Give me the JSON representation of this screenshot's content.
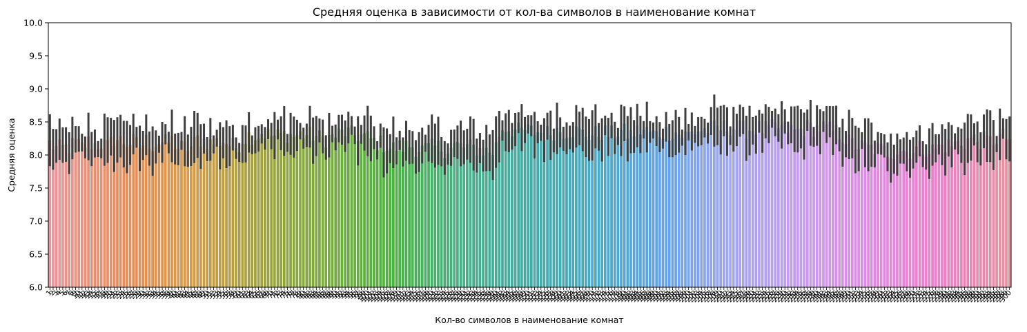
{
  "chart_data": {
    "type": "bar",
    "title": "Средняя оценка в зависимости от кол-ва символов в наименование комнат",
    "xlabel": "Кол-во символов в наименование комнат",
    "ylabel": "Средняя оценка",
    "ylim": [
      6.0,
      10.0
    ],
    "yticks": [
      "6.0",
      "6.5",
      "7.0",
      "7.5",
      "8.0",
      "8.5",
      "9.0",
      "9.5",
      "10.0"
    ],
    "bar_count": 300,
    "xtick_label_style": "dense overlapping rotated integer labels",
    "error_bar_color": "#3f3f3f",
    "palette_anchors": [
      "#e8969c",
      "#e58f60",
      "#d89a48",
      "#a3a13e",
      "#7bab3f",
      "#4bb241",
      "#46b088",
      "#46aaa6",
      "#4aa9c7",
      "#66a3e8",
      "#a7a6ec",
      "#c69ceb",
      "#df8ae1",
      "#ea80c6",
      "#e6929f"
    ],
    "series_profile": [
      8.18,
      8.1,
      8.1,
      8.12,
      8.18,
      8.12,
      8.2,
      8.15,
      8.18,
      8.12,
      8.25,
      8.22,
      8.18,
      8.2,
      8.12,
      8.22,
      8.15,
      8.2,
      8.18,
      8.22,
      8.1,
      8.12,
      8.12,
      8.25,
      8.22,
      8.18,
      8.2,
      8.22,
      8.15,
      8.12,
      8.25,
      8.3,
      8.28,
      8.35,
      8.3,
      8.28,
      8.3,
      8.32,
      8.28,
      8.32,
      8.3,
      8.3,
      8.25,
      8.25,
      8.28,
      8.32,
      8.35,
      8.3,
      8.3,
      8.28,
      8.22,
      8.18,
      8.15,
      8.1,
      8.12,
      8.12,
      8.15,
      8.1,
      8.08,
      8.1,
      8.12,
      8.1,
      8.08,
      8.15,
      8.12,
      8.12,
      8.1,
      8.08,
      8.05,
      8.05,
      8.4,
      8.42,
      8.38,
      8.35,
      8.38,
      8.35,
      8.35,
      8.32,
      8.35,
      8.38,
      8.35,
      8.38,
      8.35,
      8.32,
      8.3,
      8.32,
      8.35,
      8.3,
      8.35,
      8.35,
      8.3,
      8.35,
      8.38,
      8.35,
      8.3,
      8.35,
      8.35,
      8.35,
      8.3,
      8.3,
      8.35,
      8.38,
      8.38,
      8.4,
      8.4,
      8.42,
      8.42,
      8.4,
      8.38,
      8.4,
      8.4,
      8.38,
      8.4,
      8.42,
      8.4,
      8.38,
      8.35,
      8.4,
      8.42,
      8.4,
      8.42,
      8.38,
      8.35,
      8.3,
      8.2,
      8.15,
      8.12,
      8.1,
      8.1,
      8.08,
      8.05,
      8.05,
      8.1,
      8.05,
      8.08,
      8.1,
      8.1,
      8.08,
      8.12,
      8.15,
      8.15,
      8.18,
      8.2,
      8.25,
      8.22,
      8.22,
      8.2,
      8.25,
      8.28,
      8.25
    ]
  }
}
